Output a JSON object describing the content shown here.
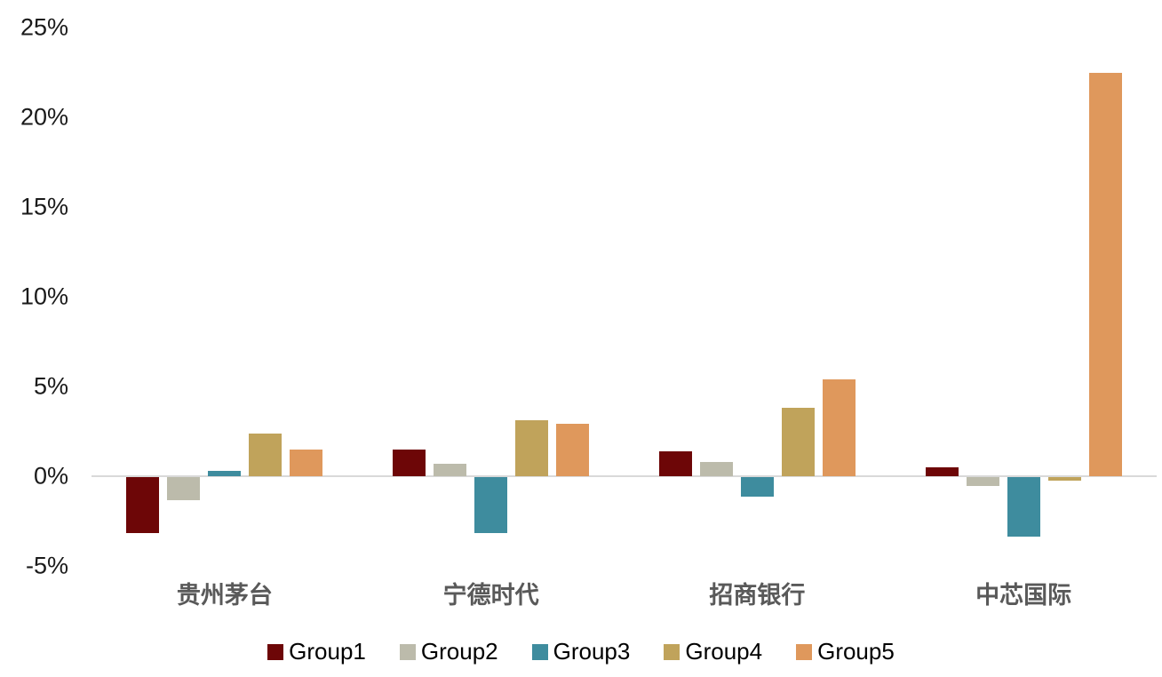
{
  "chart_data": {
    "type": "bar",
    "title": "",
    "xlabel": "",
    "ylabel": "",
    "categories": [
      "贵州茅台",
      "宁德时代",
      "招商银行",
      "中芯国际"
    ],
    "series": [
      {
        "name": "Group1",
        "color": "#6D0607",
        "values": [
          -3.1,
          1.5,
          1.4,
          0.5
        ]
      },
      {
        "name": "Group2",
        "color": "#BCBBAB",
        "values": [
          -1.3,
          0.7,
          0.8,
          -0.5
        ]
      },
      {
        "name": "Group3",
        "color": "#3E8C9E",
        "values": [
          0.3,
          -3.1,
          -1.1,
          -3.3
        ]
      },
      {
        "name": "Group4",
        "color": "#C0A35B",
        "values": [
          2.4,
          3.1,
          3.8,
          -0.2
        ]
      },
      {
        "name": "Group5",
        "color": "#DF985C",
        "values": [
          1.5,
          2.9,
          5.4,
          22.5
        ]
      }
    ],
    "y_ticks": [
      {
        "label": "25%",
        "value": 25
      },
      {
        "label": "20%",
        "value": 20
      },
      {
        "label": "15%",
        "value": 15
      },
      {
        "label": "10%",
        "value": 10
      },
      {
        "label": "5%",
        "value": 5
      },
      {
        "label": "0%",
        "value": 0
      },
      {
        "label": "-5%",
        "value": -5
      }
    ],
    "ylim": [
      -5,
      25
    ],
    "grid": false,
    "legend_position": "bottom",
    "axis_line_color": "#D9D9D9",
    "tick_label_color": "#1A1A1A",
    "category_label_color": "#595959",
    "legend_label_color": "#000000",
    "background_color": "#FFFFFF"
  }
}
